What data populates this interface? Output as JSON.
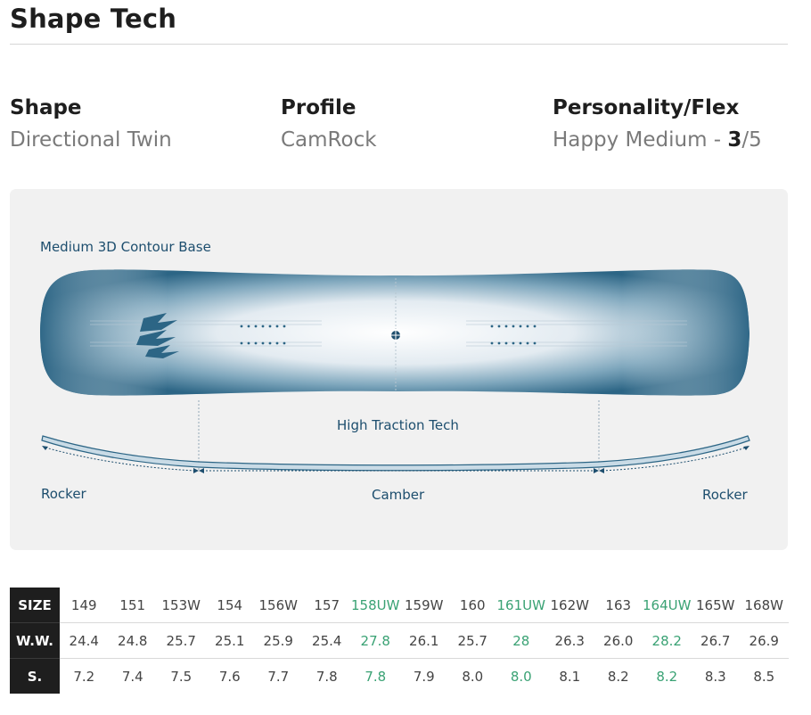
{
  "page": {
    "title": "Shape Tech"
  },
  "specs": [
    {
      "label": "Shape",
      "value": "Directional Twin"
    },
    {
      "label": "Profile",
      "value": "CamRock"
    },
    {
      "label": "Personality/Flex",
      "value_prefix": "Happy Medium - ",
      "value_emph": "3",
      "value_suffix": "/5"
    }
  ],
  "diagram": {
    "base_label": "Medium 3D Contour Base",
    "traction_label": "High Traction Tech",
    "rocker_left": "Rocker",
    "camber": "Camber",
    "rocker_right": "Rocker"
  },
  "size_chart": {
    "headers": [
      "SIZE",
      "W.W.",
      "S."
    ],
    "sizes": [
      "149",
      "151",
      "153W",
      "154",
      "156W",
      "157",
      "158UW",
      "159W",
      "160",
      "161UW",
      "162W",
      "163",
      "164UW",
      "165W",
      "168W"
    ],
    "waist_widths": [
      "24.4",
      "24.8",
      "25.7",
      "25.1",
      "25.9",
      "25.4",
      "27.8",
      "26.1",
      "25.7",
      "28",
      "26.3",
      "26.0",
      "28.2",
      "26.7",
      "26.9"
    ],
    "setbacks": [
      "7.2",
      "7.4",
      "7.5",
      "7.6",
      "7.7",
      "7.8",
      "7.8",
      "7.9",
      "8.0",
      "8.0",
      "8.1",
      "8.2",
      "8.2",
      "8.3",
      "8.5"
    ],
    "highlight_color": "#3aa274"
  }
}
